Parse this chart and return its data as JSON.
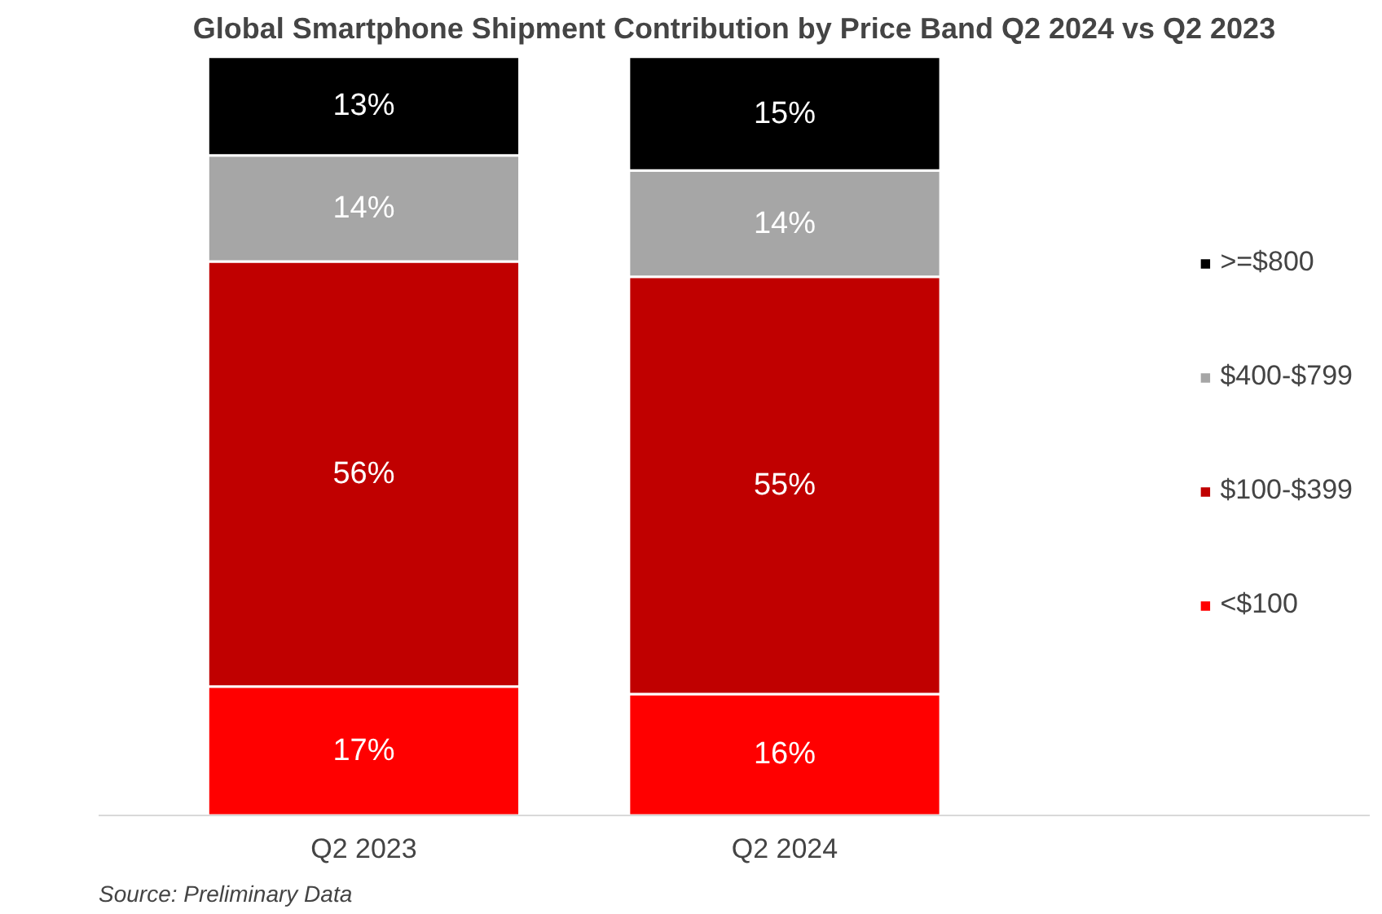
{
  "chart_data": {
    "type": "bar",
    "stacked": true,
    "title": "Global Smartphone Shipment Contribution by Price Band Q2 2024 vs Q2 2023",
    "categories": [
      "Q2 2023",
      "Q2 2024"
    ],
    "series": [
      {
        "name": "<$100",
        "color": "#ff0000",
        "values": [
          17,
          16
        ],
        "value_labels": [
          "17%",
          "16%"
        ]
      },
      {
        "name": "$100-$399",
        "color": "#c00000",
        "values": [
          56,
          55
        ],
        "value_labels": [
          "56%",
          "55%"
        ]
      },
      {
        "name": "$400-$799",
        "color": "#a6a6a6",
        "values": [
          14,
          14
        ],
        "value_labels": [
          "14%",
          "14%"
        ]
      },
      {
        "name": ">=$800",
        "color": "#000000",
        "values": [
          13,
          15
        ],
        "value_labels": [
          "13%",
          "15%"
        ]
      }
    ],
    "legend": "right",
    "grid": false,
    "annotations": [
      "Source: Preliminary Data"
    ]
  }
}
